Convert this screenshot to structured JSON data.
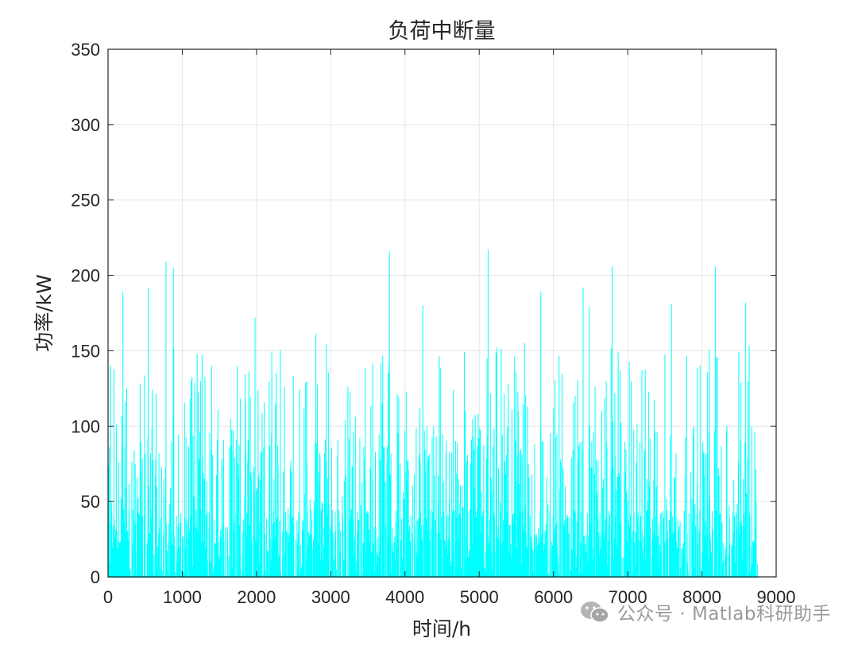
{
  "chart_data": {
    "type": "bar",
    "title": "负荷中断量",
    "xlabel": "时间/h",
    "ylabel": "功率/kW",
    "xlim": [
      0,
      9000
    ],
    "ylim": [
      0,
      350
    ],
    "xticks": [
      0,
      1000,
      2000,
      3000,
      4000,
      5000,
      6000,
      7000,
      8000,
      9000
    ],
    "yticks": [
      0,
      50,
      100,
      150,
      200,
      250,
      300,
      350
    ],
    "grid": true,
    "color": "#00ffff",
    "series": [
      {
        "x_range": [
          1,
          8760
        ],
        "notable_peaks": [
          {
            "x": 200,
            "y": 189
          },
          {
            "x": 540,
            "y": 192
          },
          {
            "x": 780,
            "y": 209
          },
          {
            "x": 880,
            "y": 205
          },
          {
            "x": 1980,
            "y": 172
          },
          {
            "x": 2800,
            "y": 161
          },
          {
            "x": 3790,
            "y": 216
          },
          {
            "x": 4240,
            "y": 180
          },
          {
            "x": 5120,
            "y": 217
          },
          {
            "x": 5830,
            "y": 189
          },
          {
            "x": 6400,
            "y": 192
          },
          {
            "x": 6480,
            "y": 179
          },
          {
            "x": 6790,
            "y": 206
          },
          {
            "x": 7590,
            "y": 181
          },
          {
            "x": 8180,
            "y": 206
          },
          {
            "x": 8590,
            "y": 182
          }
        ]
      }
    ]
  },
  "watermark": {
    "text": "公众号 · Matlab科研助手"
  }
}
